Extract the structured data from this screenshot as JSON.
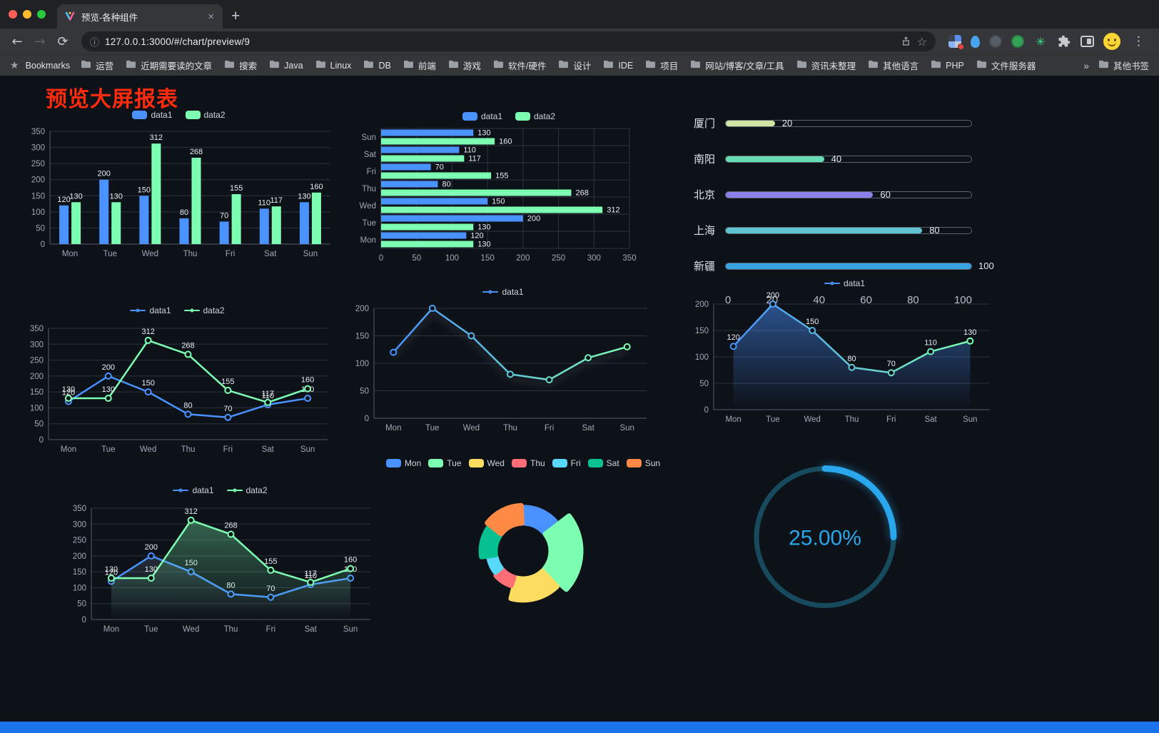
{
  "browser": {
    "tab": {
      "title": "预览-各种组件"
    },
    "url": "127.0.0.1:3000/#/chart/preview/9",
    "bookmarks_bar": {
      "label": "Bookmarks",
      "items": [
        "运营",
        "近期需要读的文章",
        "搜索",
        "Java",
        "Linux",
        "DB",
        "前端",
        "游戏",
        "软件/硬件",
        "设计",
        "IDE",
        "项目",
        "网站/博客/文章/工具",
        "资讯未整理",
        "其他语言",
        "PHP",
        "文件服务器"
      ],
      "overflow": "»",
      "other": "其他书签"
    }
  },
  "page": {
    "title": "预览大屏报表",
    "title_color": "#ff2b0d",
    "background": "#0d1118",
    "accent_blue": "#4992ff",
    "accent_green": "#7cffb2"
  },
  "chart_data": [
    {
      "id": "grouped-bar",
      "type": "bar",
      "categories": [
        "Mon",
        "Tue",
        "Wed",
        "Thu",
        "Fri",
        "Sat",
        "Sun"
      ],
      "series": [
        {
          "name": "data1",
          "color": "#4992ff",
          "values": [
            120,
            200,
            150,
            80,
            70,
            110,
            130
          ]
        },
        {
          "name": "data2",
          "color": "#7cffb2",
          "values": [
            130,
            130,
            312,
            268,
            155,
            117,
            160
          ]
        }
      ],
      "ylim": [
        0,
        350
      ],
      "yticks": [
        0,
        50,
        100,
        150,
        200,
        250,
        300,
        350
      ],
      "legend_position": "top",
      "grid": true
    },
    {
      "id": "horizontal-bar",
      "type": "bar-horizontal",
      "categories": [
        "Mon",
        "Tue",
        "Wed",
        "Thu",
        "Fri",
        "Sat",
        "Sun"
      ],
      "series": [
        {
          "name": "data1",
          "color": "#4992ff",
          "values": [
            120,
            200,
            150,
            80,
            70,
            110,
            130
          ]
        },
        {
          "name": "data2",
          "color": "#7cffb2",
          "values": [
            130,
            130,
            312,
            268,
            155,
            117,
            160
          ]
        }
      ],
      "xlim": [
        0,
        350
      ],
      "xticks": [
        0,
        50,
        100,
        150,
        200,
        250,
        300,
        350
      ],
      "legend_position": "top",
      "grid": true
    },
    {
      "id": "city-progress",
      "type": "progress",
      "items": [
        {
          "label": "厦门",
          "value": 20,
          "color": "#cfe6a2"
        },
        {
          "label": "南阳",
          "value": 40,
          "color": "#67ddb5"
        },
        {
          "label": "北京",
          "value": 60,
          "color": "#8b80e9"
        },
        {
          "label": "上海",
          "value": 80,
          "color": "#5fc4cf"
        },
        {
          "label": "新疆",
          "value": 100,
          "color": "#38a5e2"
        }
      ],
      "xlim": [
        0,
        100
      ],
      "xticks": [
        0,
        20,
        40,
        60,
        80,
        100
      ]
    },
    {
      "id": "line-two",
      "type": "line",
      "categories": [
        "Mon",
        "Tue",
        "Wed",
        "Thu",
        "Fri",
        "Sat",
        "Sun"
      ],
      "series": [
        {
          "name": "data1",
          "color": "#4992ff",
          "values": [
            120,
            200,
            150,
            80,
            70,
            110,
            130
          ]
        },
        {
          "name": "data2",
          "color": "#7cffb2",
          "values": [
            130,
            130,
            312,
            268,
            155,
            117,
            160
          ]
        }
      ],
      "ylim": [
        0,
        350
      ],
      "yticks": [
        0,
        50,
        100,
        150,
        200,
        250,
        300,
        350
      ],
      "show_labels": true,
      "legend_position": "top",
      "grid": true
    },
    {
      "id": "line-gradient",
      "type": "line",
      "categories": [
        "Mon",
        "Tue",
        "Wed",
        "Thu",
        "Fri",
        "Sat",
        "Sun"
      ],
      "series": [
        {
          "name": "data1",
          "gradient": [
            "#4992ff",
            "#7cffb2"
          ],
          "values": [
            120,
            200,
            150,
            80,
            70,
            110,
            130
          ]
        }
      ],
      "ylim": [
        0,
        200
      ],
      "yticks": [
        0,
        50,
        100,
        150,
        200
      ],
      "show_labels": false,
      "legend_position": "top",
      "grid": true
    },
    {
      "id": "line-area",
      "type": "area",
      "categories": [
        "Mon",
        "Tue",
        "Wed",
        "Thu",
        "Fri",
        "Sat",
        "Sun"
      ],
      "series": [
        {
          "name": "data1",
          "gradient": [
            "#4992ff",
            "#7cffb2"
          ],
          "area": {
            "color": "#4992ff",
            "opacity": 0.5
          },
          "values": [
            120,
            200,
            150,
            80,
            70,
            110,
            130
          ]
        }
      ],
      "ylim": [
        0,
        200
      ],
      "yticks": [
        0,
        50,
        100,
        150,
        200
      ],
      "show_labels": true,
      "legend_position": "top",
      "grid": true
    },
    {
      "id": "line-two-area",
      "type": "area",
      "categories": [
        "Mon",
        "Tue",
        "Wed",
        "Thu",
        "Fri",
        "Sat",
        "Sun"
      ],
      "series": [
        {
          "name": "data1",
          "color": "#4992ff",
          "area": {
            "color": "#8ea8c3",
            "opacity": 0.18
          },
          "values": [
            120,
            200,
            150,
            80,
            70,
            110,
            130
          ]
        },
        {
          "name": "data2",
          "color": "#7cffb2",
          "area": {
            "color": "#7cffb2",
            "opacity": 0.35
          },
          "values": [
            130,
            130,
            312,
            268,
            155,
            117,
            160
          ]
        }
      ],
      "ylim": [
        0,
        350
      ],
      "yticks": [
        0,
        50,
        100,
        150,
        200,
        250,
        300,
        350
      ],
      "show_labels": true,
      "legend_position": "top",
      "grid": true
    },
    {
      "id": "rose-pie",
      "type": "pie",
      "rose": true,
      "slices": [
        {
          "label": "Mon",
          "value": 120,
          "color": "#4992ff"
        },
        {
          "label": "Tue",
          "value": 200,
          "color": "#7cffb2"
        },
        {
          "label": "Wed",
          "value": 150,
          "color": "#fddd60"
        },
        {
          "label": "Thu",
          "value": 80,
          "color": "#ff6e76"
        },
        {
          "label": "Fri",
          "value": 70,
          "color": "#58d9f9"
        },
        {
          "label": "Sat",
          "value": 110,
          "color": "#05c091"
        },
        {
          "label": "Sun",
          "value": 130,
          "color": "#ff8a45"
        }
      ],
      "legend_position": "top"
    },
    {
      "id": "gauge",
      "type": "gauge",
      "value": 25,
      "label": "25.00%",
      "color": "#2aa7ec",
      "track_color": "#174a5c"
    }
  ]
}
